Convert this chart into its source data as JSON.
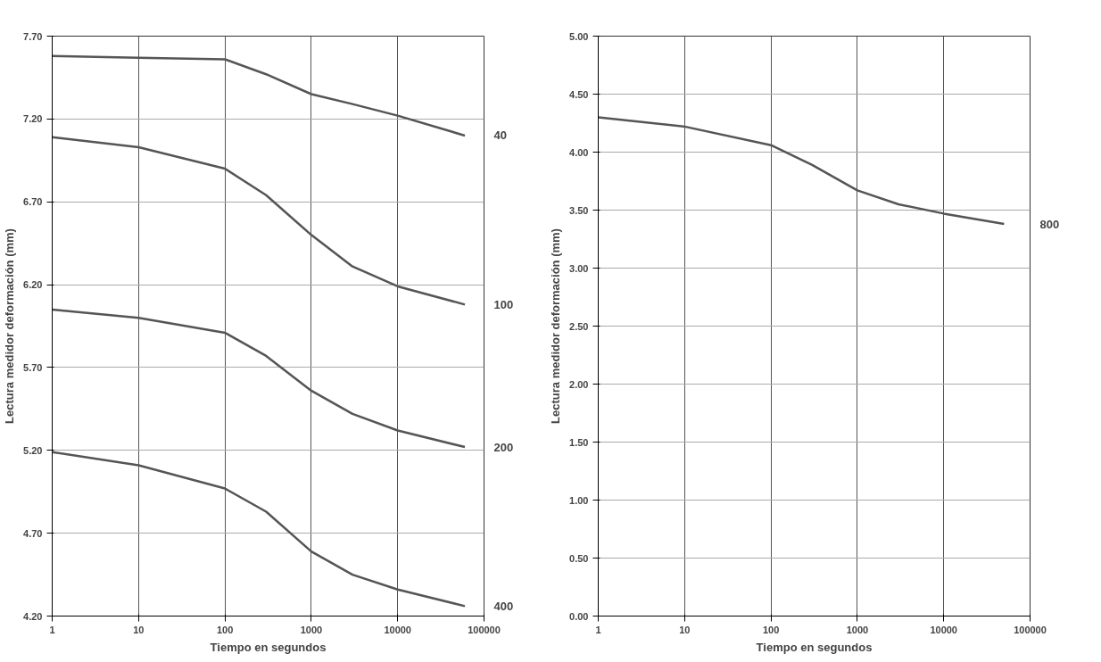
{
  "chart_data": [
    {
      "type": "line",
      "xlabel": "Tiempo en segundos",
      "ylabel": "Lectura medidor deformación (mm)",
      "log": "x",
      "grid": true,
      "marker": "none",
      "line_style": "solid",
      "xlim": [
        1,
        100000
      ],
      "xticks": [
        1,
        10,
        100,
        1000,
        10000,
        100000
      ],
      "ylim": [
        4.2,
        7.7
      ],
      "yticks": [
        {
          "value": 4.2,
          "label": "4.20"
        },
        {
          "value": 4.7,
          "label": "4.70"
        },
        {
          "value": 5.2,
          "label": "5.20"
        },
        {
          "value": 5.7,
          "label": "5.70"
        },
        {
          "value": 6.2,
          "label": "6.20"
        },
        {
          "value": 6.7,
          "label": "6.70"
        },
        {
          "value": 7.2,
          "label": "7.20"
        },
        {
          "value": 7.7,
          "label": "7.70"
        }
      ],
      "x": [
        1,
        10,
        100,
        300,
        1000,
        3000,
        10000,
        60000
      ],
      "series": [
        {
          "name": "40",
          "color": "#555555",
          "values": [
            7.58,
            7.57,
            7.56,
            7.47,
            7.35,
            7.29,
            7.22,
            7.1
          ]
        },
        {
          "name": "100",
          "color": "#555555",
          "values": [
            7.09,
            7.03,
            6.9,
            6.74,
            6.5,
            6.31,
            6.19,
            6.08
          ]
        },
        {
          "name": "200",
          "color": "#555555",
          "values": [
            6.05,
            6.0,
            5.91,
            5.77,
            5.56,
            5.42,
            5.32,
            5.22
          ]
        },
        {
          "name": "400",
          "color": "#555555",
          "values": [
            5.19,
            5.11,
            4.97,
            4.83,
            4.59,
            4.45,
            4.36,
            4.26
          ]
        }
      ]
    },
    {
      "type": "line",
      "xlabel": "Tiempo en segundos",
      "ylabel": "Lectura medidor deformación (mm)",
      "log": "x",
      "grid": true,
      "marker": "none",
      "line_style": "solid",
      "xlim": [
        1,
        100000
      ],
      "xticks": [
        1,
        10,
        100,
        1000,
        10000,
        100000
      ],
      "ylim": [
        0,
        5
      ],
      "yticks": [
        {
          "value": 0,
          "label": "0.00"
        },
        {
          "value": 0.5,
          "label": "0.50"
        },
        {
          "value": 1,
          "label": "1.00"
        },
        {
          "value": 1.5,
          "label": "1.50"
        },
        {
          "value": 2,
          "label": "2.00"
        },
        {
          "value": 2.5,
          "label": "2.50"
        },
        {
          "value": 3,
          "label": "3.00"
        },
        {
          "value": 3.5,
          "label": "3.50"
        },
        {
          "value": 4,
          "label": "4.00"
        },
        {
          "value": 4.5,
          "label": "4.50"
        },
        {
          "value": 5,
          "label": "5.00"
        }
      ],
      "x": [
        1,
        10,
        100,
        300,
        1000,
        3000,
        10000,
        50000
      ],
      "series": [
        {
          "name": "800",
          "color": "#555555",
          "values": [
            4.3,
            4.22,
            4.06,
            3.89,
            3.67,
            3.55,
            3.47,
            3.38
          ]
        }
      ]
    }
  ]
}
